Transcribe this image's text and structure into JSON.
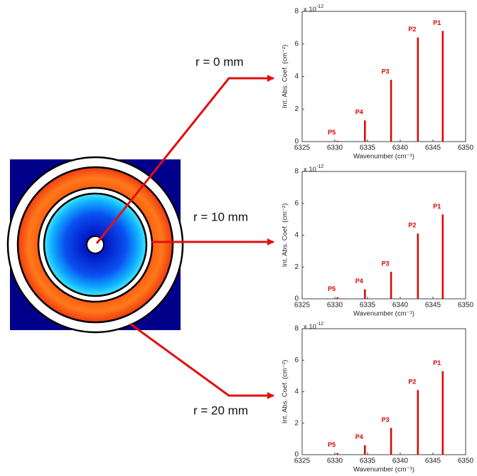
{
  "chart_data": [
    {
      "type": "stem",
      "annotation": "r = 0 mm",
      "multiplier": "x 10",
      "multiplier_exp": "-12",
      "xlabel": "Wavenumber (cm⁻¹)",
      "ylabel": "Int. Abs. Coef. (cm⁻²)",
      "x": [
        6346.5,
        6342.7,
        6338.6,
        6334.6,
        6330.4
      ],
      "point_labels": [
        "P1",
        "P2",
        "P3",
        "P4",
        "P5"
      ],
      "values": [
        6.8,
        6.4,
        3.8,
        1.3,
        0.05
      ],
      "color": "#e00000",
      "xlim": [
        6325,
        6350
      ],
      "xticks": [
        6325,
        6330,
        6335,
        6340,
        6345,
        6350
      ],
      "ylim": [
        0,
        8
      ],
      "yticks": [
        0,
        2,
        4,
        6,
        8
      ]
    },
    {
      "type": "stem",
      "annotation": "r = 10 mm",
      "multiplier": "x 10",
      "multiplier_exp": "-12",
      "xlabel": "Wavenumber (cm⁻¹)",
      "ylabel": "Int. Abs. Coef. (cm⁻²)",
      "x": [
        6346.5,
        6342.7,
        6338.6,
        6334.6,
        6330.4
      ],
      "point_labels": [
        "P1",
        "P2",
        "P3",
        "P4",
        "P5"
      ],
      "values": [
        5.3,
        4.1,
        1.7,
        0.6,
        0.1
      ],
      "color": "#e00000",
      "xlim": [
        6325,
        6350
      ],
      "xticks": [
        6325,
        6330,
        6335,
        6340,
        6345,
        6350
      ],
      "ylim": [
        0,
        8
      ],
      "yticks": [
        0,
        2,
        4,
        6,
        8
      ]
    },
    {
      "type": "stem",
      "annotation": "r = 20 mm",
      "multiplier": "x 10",
      "multiplier_exp": "-12",
      "xlabel": "Wavenumber (cm⁻¹)",
      "ylabel": "Int. Abs. Coef. (cm⁻²)",
      "x": [
        6346.5,
        6342.7,
        6338.6,
        6334.6,
        6330.4
      ],
      "point_labels": [
        "P1",
        "P2",
        "P3",
        "P4",
        "P5"
      ],
      "values": [
        5.3,
        4.1,
        1.7,
        0.6,
        0.1
      ],
      "color": "#e00000",
      "xlim": [
        6325,
        6350
      ],
      "xticks": [
        6325,
        6330,
        6335,
        6340,
        6345,
        6350
      ],
      "ylim": [
        0,
        8
      ],
      "yticks": [
        0,
        2,
        4,
        6,
        8
      ]
    }
  ]
}
